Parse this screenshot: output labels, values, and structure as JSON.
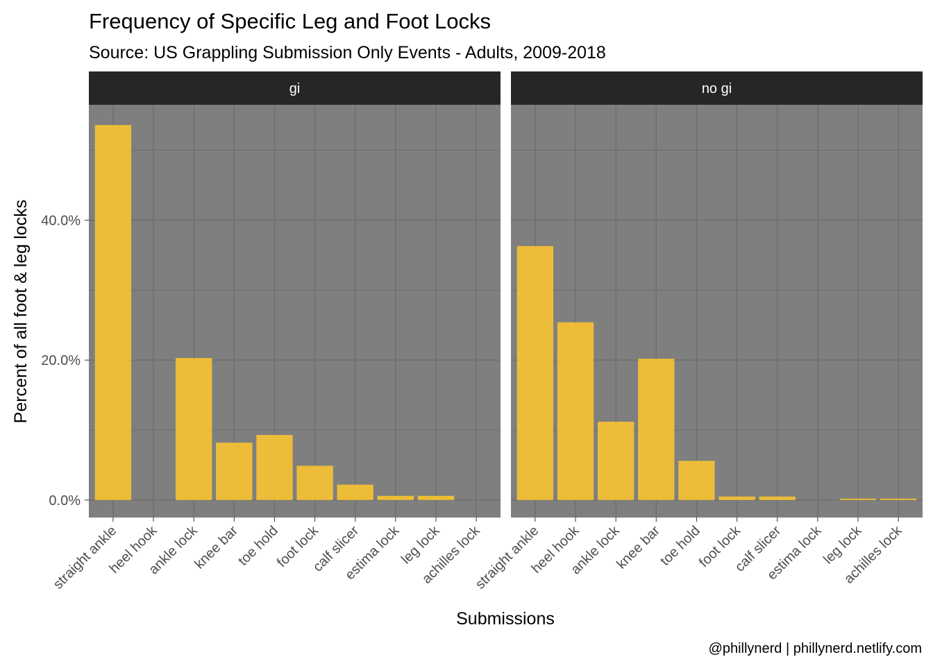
{
  "chart_data": {
    "type": "bar",
    "title": "Frequency of Specific Leg and Foot Locks",
    "subtitle": "Source: US Grappling Submission Only Events - Adults, 2009-2018",
    "xlabel": "Submissions",
    "ylabel": "Percent of all foot & leg locks",
    "caption": "@phillynerd | phillynerd.netlify.com",
    "categories": [
      "straight ankle",
      "heel hook",
      "ankle lock",
      "knee bar",
      "toe hold",
      "foot lock",
      "calf slicer",
      "estima lock",
      "leg lock",
      "achilles lock"
    ],
    "ylim": [
      -0.025,
      0.565
    ],
    "y_ticks": [
      0,
      0.2,
      0.4
    ],
    "y_tick_labels": [
      "0.0%",
      "20.0%",
      "40.0%"
    ],
    "grid": true,
    "colors": {
      "bar": "#EDBD39",
      "panel": "#7F7F7F",
      "grid": "#6E6E6E",
      "strip": "#262626",
      "strip_text": "#FFFFFF"
    },
    "panels": [
      {
        "label": "gi",
        "values": [
          0.536,
          0,
          0.203,
          0.082,
          0.093,
          0.049,
          0.022,
          0.006,
          0.006,
          0
        ]
      },
      {
        "label": "no gi",
        "values": [
          0.363,
          0.254,
          0.112,
          0.202,
          0.056,
          0.005,
          0.005,
          0,
          0.002,
          0.002
        ]
      }
    ]
  }
}
